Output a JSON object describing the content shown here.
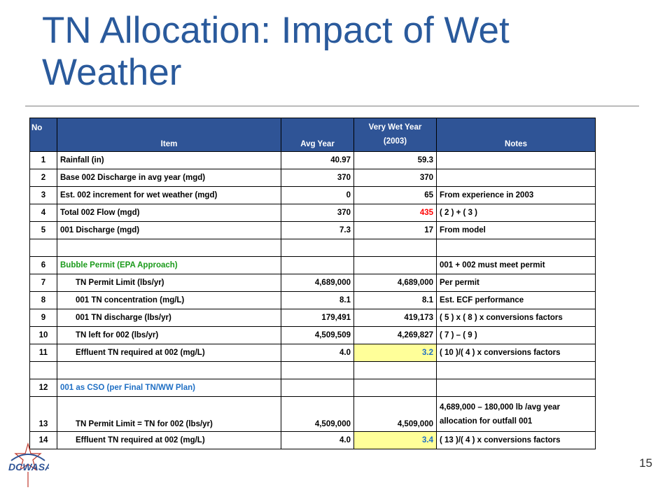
{
  "title": "TN Allocation: Impact of Wet Weather",
  "page_number": "15",
  "logo_text": "DCWASA",
  "table": {
    "headers": {
      "no": "No",
      "item": "Item",
      "avg": "Avg Year",
      "wet": "Very Wet Year (2003)",
      "notes": "Notes"
    },
    "rows": [
      {
        "no": "1",
        "item": "Rainfall  (in)",
        "avg": "40.97",
        "wet": "59.3",
        "notes": ""
      },
      {
        "no": "2",
        "item": "Base 002 Discharge  in avg year (mgd)",
        "avg": "370",
        "wet": "370",
        "notes": ""
      },
      {
        "no": "3",
        "item": "Est. 002 increment for wet weather (mgd)",
        "avg": "0",
        "wet": "65",
        "notes": "From experience in 2003"
      },
      {
        "no": "4",
        "item": "Total 002 Flow (mgd)",
        "avg": "370",
        "wet": "435",
        "notes": "( 2 ) + ( 3 )"
      },
      {
        "no": "5",
        "item": "001 Discharge (mgd)",
        "avg": "7.3",
        "wet": "17",
        "notes": "From model"
      },
      {
        "no": "",
        "item": "",
        "avg": "",
        "wet": "",
        "notes": ""
      },
      {
        "no": "6",
        "item": "Bubble Permit  (EPA Approach)",
        "avg": "",
        "wet": "",
        "notes": "001 + 002 must meet permit"
      },
      {
        "no": "7",
        "item": "TN Permit Limit (lbs/yr)",
        "avg": "4,689,000",
        "wet": "4,689,000",
        "notes": "Per permit"
      },
      {
        "no": "8",
        "item": "001 TN concentration (mg/L)",
        "avg": "8.1",
        "wet": "8.1",
        "notes": "Est. ECF performance"
      },
      {
        "no": "9",
        "item": "001 TN discharge (lbs/yr)",
        "avg": "179,491",
        "wet": "419,173",
        "notes": "( 5 ) x ( 8 ) x conversions factors"
      },
      {
        "no": "10",
        "item": "TN left for 002 (lbs/yr)",
        "avg": "4,509,509",
        "wet": "4,269,827",
        "notes": "( 7 ) – ( 9 )"
      },
      {
        "no": "11",
        "item": "Effluent TN required at 002 (mg/L)",
        "avg": "4.0",
        "wet": "3.2",
        "notes": "( 10 )/( 4 ) x conversions factors"
      },
      {
        "no": "",
        "item": "",
        "avg": "",
        "wet": "",
        "notes": ""
      },
      {
        "no": "12",
        "item": "001 as CSO  (per Final TN/WW Plan)",
        "avg": "",
        "wet": "",
        "notes": ""
      },
      {
        "no": "13",
        "item": "TN Permit Limit = TN for 002 (lbs/yr)",
        "avg": "4,509,000",
        "wet": "4,509,000",
        "notes": "4,689,000 – 180,000 lb /avg year allocation for outfall 001"
      },
      {
        "no": "14",
        "item": "Effluent TN required at 002 (mg/L)",
        "avg": "4.0",
        "wet": "3.4",
        "notes": "( 13 )/( 4 ) x conversions factors"
      }
    ]
  },
  "colors": {
    "title": "#2a5a9c",
    "header_bg": "#2f5496",
    "green_text": "#1a9a1a",
    "blue_text": "#1f6fc4",
    "red_text": "#ff0000",
    "highlight": "#ffff99"
  }
}
